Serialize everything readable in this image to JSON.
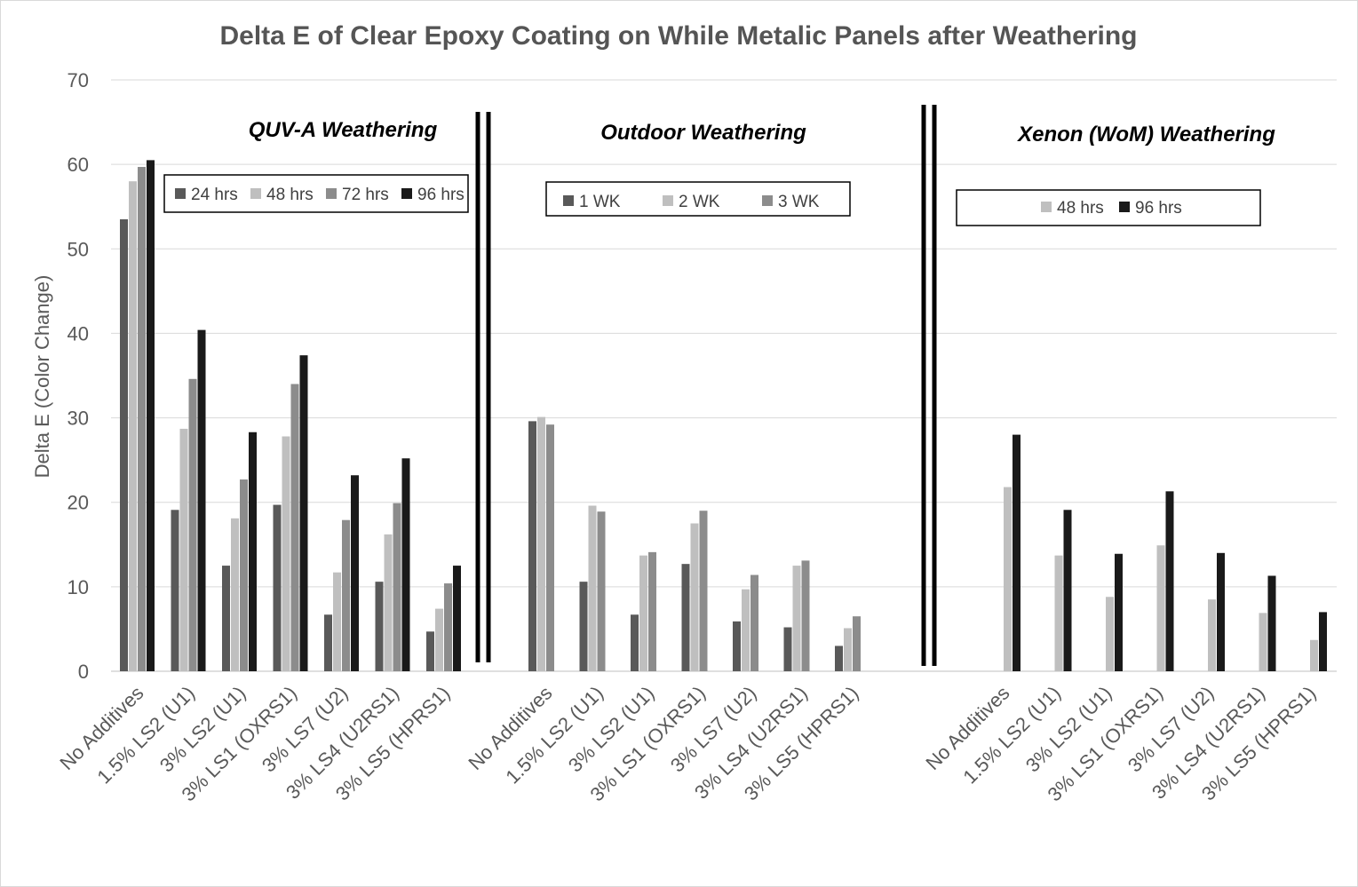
{
  "chart_data": {
    "type": "bar",
    "title": "Delta E of Clear Epoxy Coating on While Metalic Panels after Weathering",
    "ylabel": "Delta E (Color Change)",
    "ylim": [
      0,
      70
    ],
    "yticks": [
      "0",
      "10",
      "20",
      "30",
      "40",
      "50",
      "60",
      "70"
    ],
    "grid": true,
    "colors": {
      "24 hrs": "#595959",
      "48 hrs": "#bfbfbf",
      "72 hrs": "#8c8c8c",
      "96 hrs": "#1a1a1a",
      "1 WK": "#595959",
      "2 WK": "#bfbfbf",
      "3 WK": "#8c8c8c",
      "grid": "#d9d9d9",
      "divider": "#000000"
    },
    "groups": [
      {
        "title": "QUV-A Weathering",
        "categories": [
          "No Additives",
          "1.5% LS2 (U1)",
          "3% LS2 (U1)",
          "3% LS1 (OXRS1)",
          "3% LS7 (U2)",
          "3% LS4 (U2RS1)",
          "3% LS5 (HPRS1)"
        ],
        "legend": [
          "24 hrs",
          "48 hrs",
          "72 hrs",
          "96 hrs"
        ],
        "series": [
          {
            "name": "24 hrs",
            "values": [
              53.5,
              19.1,
              12.5,
              19.7,
              6.7,
              10.6,
              4.7
            ]
          },
          {
            "name": "48 hrs",
            "values": [
              58.0,
              28.7,
              18.1,
              27.8,
              11.7,
              16.2,
              7.4
            ]
          },
          {
            "name": "72 hrs",
            "values": [
              59.7,
              34.6,
              22.7,
              34.0,
              17.9,
              19.9,
              10.4
            ]
          },
          {
            "name": "96 hrs",
            "values": [
              60.5,
              40.4,
              28.3,
              37.4,
              23.2,
              25.2,
              12.5
            ]
          }
        ]
      },
      {
        "title": "Outdoor  Weathering",
        "categories": [
          "No Additives",
          "1.5% LS2 (U1)",
          "3% LS2 (U1)",
          "3% LS1 (OXRS1)",
          "3% LS7 (U2)",
          "3% LS4 (U2RS1)",
          "3% LS5 (HPRS1)"
        ],
        "legend": [
          "1 WK",
          "2 WK",
          "3 WK"
        ],
        "series": [
          {
            "name": "1 WK",
            "values": [
              29.6,
              10.6,
              6.7,
              12.7,
              5.9,
              5.2,
              3.0
            ]
          },
          {
            "name": "2 WK",
            "values": [
              30.1,
              19.6,
              13.7,
              17.5,
              9.7,
              12.5,
              5.1
            ]
          },
          {
            "name": "3 WK",
            "values": [
              29.2,
              18.9,
              14.1,
              19.0,
              11.4,
              13.1,
              6.5
            ]
          }
        ]
      },
      {
        "title": "Xenon (WoM) Weathering",
        "categories": [
          "No Additives",
          "1.5% LS2 (U1)",
          "3% LS2 (U1)",
          "3% LS1 (OXRS1)",
          "3% LS7 (U2)",
          "3% LS4 (U2RS1)",
          "3% LS5 (HPRS1)"
        ],
        "legend": [
          "48 hrs",
          "96 hrs"
        ],
        "series": [
          {
            "name": "48 hrs",
            "values": [
              21.8,
              13.7,
              8.8,
              14.9,
              8.5,
              6.9,
              3.7
            ]
          },
          {
            "name": "96 hrs",
            "values": [
              28.0,
              19.1,
              13.9,
              21.3,
              14.0,
              11.3,
              7.0
            ]
          }
        ]
      }
    ]
  }
}
